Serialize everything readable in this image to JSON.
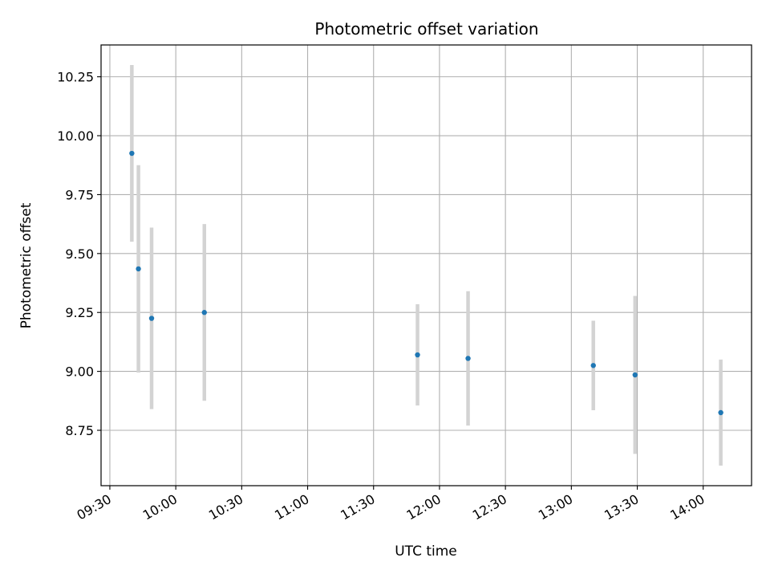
{
  "chart_data": {
    "type": "scatter",
    "title": "Photometric offset variation",
    "xlabel": "UTC time",
    "ylabel": "Photometric offset",
    "xlim": [
      "09:26",
      "14:22"
    ],
    "ylim": [
      8.515,
      10.385
    ],
    "x_ticks": [
      "09:30",
      "10:00",
      "10:30",
      "11:00",
      "11:30",
      "12:00",
      "12:30",
      "13:00",
      "13:30",
      "14:00"
    ],
    "y_ticks": [
      8.75,
      9.0,
      9.25,
      9.5,
      9.75,
      10.0,
      10.25
    ],
    "y_tick_labels": [
      "8.75",
      "9.00",
      "9.25",
      "9.50",
      "9.75",
      "10.00",
      "10.25"
    ],
    "grid": true,
    "point_color": "#1f77b4",
    "errorbar_color": "#d3d3d3",
    "points": [
      {
        "x": "09:40",
        "y": 9.925,
        "yerr": 0.375
      },
      {
        "x": "09:43",
        "y": 9.435,
        "yerr": 0.44
      },
      {
        "x": "09:49",
        "y": 9.225,
        "yerr": 0.385
      },
      {
        "x": "10:13",
        "y": 9.25,
        "yerr": 0.375
      },
      {
        "x": "11:50",
        "y": 9.07,
        "yerr": 0.215
      },
      {
        "x": "12:13",
        "y": 9.055,
        "yerr": 0.285
      },
      {
        "x": "13:10",
        "y": 9.025,
        "yerr": 0.19
      },
      {
        "x": "13:29",
        "y": 8.985,
        "yerr": 0.335
      },
      {
        "x": "14:08",
        "y": 8.825,
        "yerr": 0.225
      }
    ]
  }
}
